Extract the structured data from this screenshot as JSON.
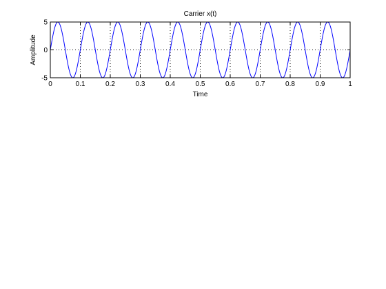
{
  "chart_data": {
    "type": "line",
    "title": "Carrier x(t)",
    "xlabel": "Time",
    "ylabel": "Amplitude",
    "xlim": [
      0,
      1
    ],
    "ylim": [
      -5,
      5
    ],
    "xticks": [
      0,
      0.1,
      0.2,
      0.3,
      0.4,
      0.5,
      0.6,
      0.7,
      0.8,
      0.9,
      1
    ],
    "xtick_labels": [
      "0",
      "0.1",
      "0.2",
      "0.3",
      "0.4",
      "0.5",
      "0.6",
      "0.7",
      "0.8",
      "0.9",
      "1"
    ],
    "yticks": [
      -5,
      0,
      5
    ],
    "ytick_labels": [
      "-5",
      "0",
      "5"
    ],
    "grid": true,
    "series": [
      {
        "function": "5*sin(2*pi*10*t)",
        "amplitude": 5,
        "frequency_hz": 10,
        "color": "#0000ff"
      }
    ]
  }
}
